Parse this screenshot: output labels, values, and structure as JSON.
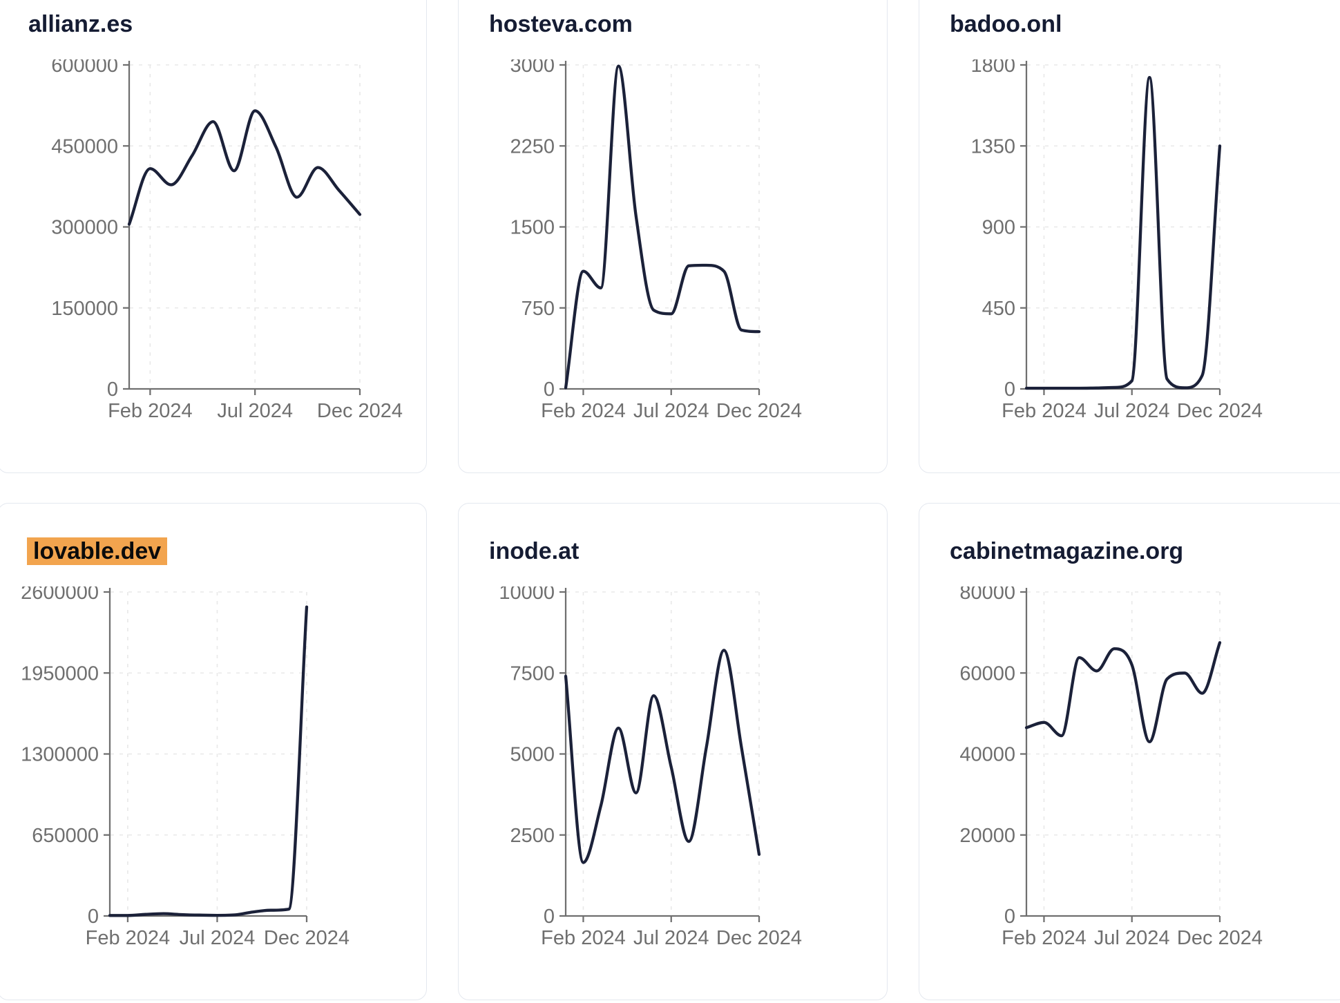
{
  "page": {
    "background": "#ffffff",
    "card_border": "#e4e8ef",
    "line_color": "#1b2139",
    "axis_color": "#6f6f6f",
    "grid_color": "#e8e8e8",
    "title_color": "#151c33",
    "highlight_color": "#f2a44e"
  },
  "chart_data": [
    {
      "type": "line",
      "title": "allianz.es",
      "highlighted": false,
      "n_points": 12,
      "values": [
        305000,
        408000,
        378000,
        432000,
        495000,
        404000,
        515000,
        448000,
        355000,
        410000,
        368000,
        323000
      ],
      "yticks": [
        0,
        150000,
        300000,
        450000,
        600000
      ],
      "ytick_labels": [
        "0",
        "150000",
        "300000",
        "450000",
        "600000"
      ],
      "ylim": [
        0,
        600000
      ],
      "x_tick_labels": [
        "Feb 2024",
        "Jul 2024",
        "Dec 2024"
      ],
      "x_tick_positions": [
        1,
        6,
        11
      ],
      "grid": "dashed"
    },
    {
      "type": "line",
      "title": "hosteva.com",
      "highlighted": false,
      "n_points": 12,
      "values": [
        10,
        1090,
        935,
        2990,
        1600,
        730,
        695,
        1140,
        1145,
        1090,
        545,
        530
      ],
      "yticks": [
        0,
        750,
        1500,
        2250,
        3000
      ],
      "ytick_labels": [
        "0",
        "750",
        "1500",
        "2250",
        "3000"
      ],
      "ylim": [
        0,
        3000
      ],
      "x_tick_labels": [
        "Feb 2024",
        "Jul 2024",
        "Dec 2024"
      ],
      "x_tick_positions": [
        1,
        6,
        11
      ],
      "grid": "dashed"
    },
    {
      "type": "line",
      "title": "badoo.onl",
      "highlighted": false,
      "n_points": 12,
      "values": [
        4,
        4,
        4,
        4,
        5,
        8,
        45,
        1730,
        55,
        6,
        75,
        1350
      ],
      "yticks": [
        0,
        450,
        900,
        1350,
        1800
      ],
      "ytick_labels": [
        "0",
        "450",
        "900",
        "1350",
        "1800"
      ],
      "ylim": [
        0,
        1800
      ],
      "x_tick_labels": [
        "Feb 2024",
        "Jul 2024",
        "Dec 2024"
      ],
      "x_tick_positions": [
        1,
        6,
        11
      ],
      "grid": "dashed"
    },
    {
      "type": "line",
      "title": "lovable.dev",
      "highlighted": true,
      "n_points": 12,
      "values": [
        4000,
        4000,
        13000,
        19000,
        11000,
        7000,
        5000,
        9000,
        32000,
        46000,
        55000,
        2480000
      ],
      "yticks": [
        0,
        650000,
        1300000,
        1950000,
        2600000
      ],
      "ytick_labels": [
        "0",
        "650000",
        "1300000",
        "1950000",
        "2600000"
      ],
      "ylim": [
        0,
        2600000
      ],
      "x_tick_labels": [
        "Feb 2024",
        "Jul 2024",
        "Dec 2024"
      ],
      "x_tick_positions": [
        1,
        6,
        11
      ],
      "grid": "dashed"
    },
    {
      "type": "line",
      "title": "inode.at",
      "highlighted": false,
      "n_points": 12,
      "values": [
        7400,
        1650,
        3400,
        5800,
        3800,
        6800,
        4600,
        2300,
        5200,
        8200,
        5200,
        1900
      ],
      "yticks": [
        0,
        2500,
        5000,
        7500,
        10000
      ],
      "ytick_labels": [
        "0",
        "2500",
        "5000",
        "7500",
        "10000"
      ],
      "ylim": [
        0,
        10000
      ],
      "x_tick_labels": [
        "Feb 2024",
        "Jul 2024",
        "Dec 2024"
      ],
      "x_tick_positions": [
        1,
        6,
        11
      ],
      "grid": "dashed"
    },
    {
      "type": "line",
      "title": "cabinetmagazine.org",
      "highlighted": false,
      "n_points": 12,
      "values": [
        46500,
        47800,
        44500,
        63800,
        60500,
        66000,
        62000,
        43000,
        58500,
        60000,
        55000,
        67500
      ],
      "yticks": [
        0,
        20000,
        40000,
        60000,
        80000
      ],
      "ytick_labels": [
        "0",
        "20000",
        "40000",
        "60000",
        "80000"
      ],
      "ylim": [
        0,
        80000
      ],
      "x_tick_labels": [
        "Feb 2024",
        "Jul 2024",
        "Dec 2024"
      ],
      "x_tick_positions": [
        1,
        6,
        11
      ],
      "grid": "dashed"
    }
  ]
}
